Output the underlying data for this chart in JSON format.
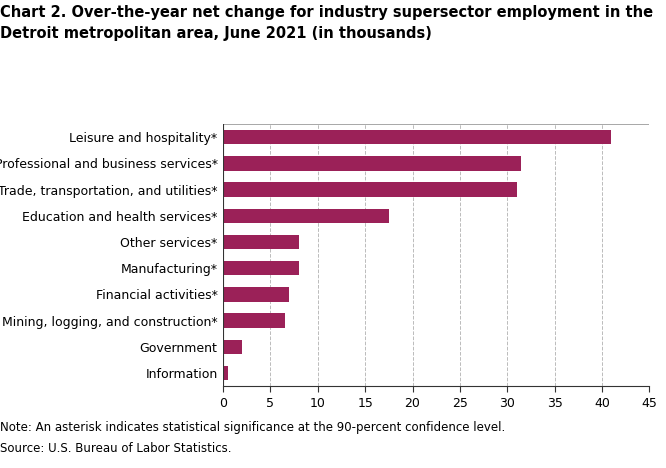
{
  "title_line1": "Chart 2. Over-the-year net change for industry supersector employment in the",
  "title_line2": "Detroit metropolitan area, June 2021 (in thousands)",
  "categories": [
    "Information",
    "Government",
    "Mining, logging, and construction*",
    "Financial activities*",
    "Manufacturing*",
    "Other services*",
    "Education and health services*",
    "Trade, transportation, and utilities*",
    "Professional and business services*",
    "Leisure and hospitality*"
  ],
  "values": [
    0.5,
    2.0,
    6.5,
    7.0,
    8.0,
    8.0,
    17.5,
    31.0,
    31.5,
    41.0
  ],
  "bar_color": "#9b2158",
  "xlim": [
    0,
    45
  ],
  "xticks": [
    0,
    5,
    10,
    15,
    20,
    25,
    30,
    35,
    40,
    45
  ],
  "grid_color": "#bbbbbb",
  "note": "Note: An asterisk indicates statistical significance at the 90-percent confidence level.",
  "source": "Source: U.S. Bureau of Labor Statistics.",
  "title_fontsize": 10.5,
  "tick_fontsize": 9,
  "note_fontsize": 8.5,
  "bar_height": 0.55
}
